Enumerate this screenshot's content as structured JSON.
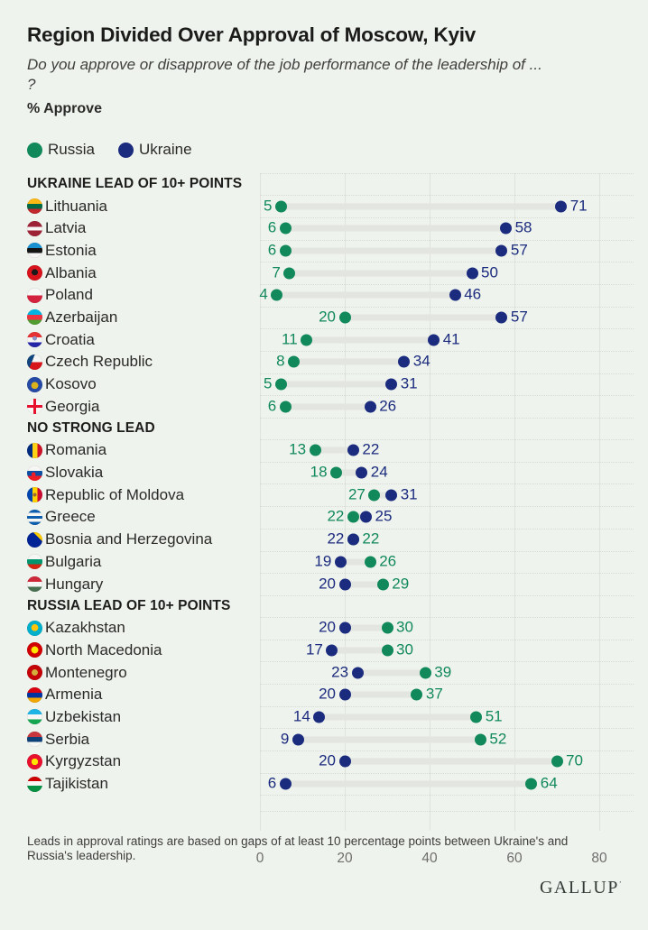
{
  "header": {
    "title": "Region Divided Over Approval of Moscow, Kyiv",
    "subtitle_line1": "Do you approve or disapprove of the job performance of the leadership of ...",
    "subtitle_line2": "?",
    "measure_label": "% Approve"
  },
  "legend": {
    "russia_label": "Russia",
    "ukraine_label": "Ukraine"
  },
  "colors": {
    "russia": "#11895a",
    "ukraine": "#1b2b7e",
    "bar": "#e3e6e0",
    "gridline": "#dfe3dc",
    "background": "#eff3ed"
  },
  "chart_data": {
    "type": "dumbbell",
    "title": "Region Divided Over Approval of Moscow, Kyiv",
    "measure": "% Approve",
    "series_names": [
      "Russia",
      "Ukraine"
    ],
    "axis": {
      "min": 0,
      "max": 80,
      "ticks": [
        0,
        20,
        40,
        60,
        80
      ],
      "grid": true
    },
    "sections": [
      {
        "label": "UKRAINE LEAD OF 10+ POINTS",
        "rows": [
          {
            "country": "Lithuania",
            "flag": "lithuania",
            "russia": 5,
            "ukraine": 71
          },
          {
            "country": "Latvia",
            "flag": "latvia",
            "russia": 6,
            "ukraine": 58
          },
          {
            "country": "Estonia",
            "flag": "estonia",
            "russia": 6,
            "ukraine": 57
          },
          {
            "country": "Albania",
            "flag": "albania",
            "russia": 7,
            "ukraine": 50
          },
          {
            "country": "Poland",
            "flag": "poland",
            "russia": 4,
            "ukraine": 46
          },
          {
            "country": "Azerbaijan",
            "flag": "azerbaijan",
            "russia": 20,
            "ukraine": 57
          },
          {
            "country": "Croatia",
            "flag": "croatia",
            "russia": 11,
            "ukraine": 41
          },
          {
            "country": "Czech Republic",
            "flag": "czech",
            "russia": 8,
            "ukraine": 34
          },
          {
            "country": "Kosovo",
            "flag": "kosovo",
            "russia": 5,
            "ukraine": 31
          },
          {
            "country": "Georgia",
            "flag": "georgia",
            "russia": 6,
            "ukraine": 26
          }
        ]
      },
      {
        "label": "NO STRONG LEAD",
        "rows": [
          {
            "country": "Romania",
            "flag": "romania",
            "russia": 13,
            "ukraine": 22
          },
          {
            "country": "Slovakia",
            "flag": "slovakia",
            "russia": 18,
            "ukraine": 24
          },
          {
            "country": "Republic of Moldova",
            "flag": "moldova",
            "russia": 27,
            "ukraine": 31
          },
          {
            "country": "Greece",
            "flag": "greece",
            "russia": 22,
            "ukraine": 25
          },
          {
            "country": "Bosnia and Herzegovina",
            "flag": "bosnia",
            "russia": 22,
            "ukraine": 22
          },
          {
            "country": "Bulgaria",
            "flag": "bulgaria",
            "russia": 26,
            "ukraine": 19
          },
          {
            "country": "Hungary",
            "flag": "hungary",
            "russia": 29,
            "ukraine": 20
          }
        ]
      },
      {
        "label": "RUSSIA LEAD OF 10+ POINTS",
        "rows": [
          {
            "country": "Kazakhstan",
            "flag": "kazakhstan",
            "russia": 30,
            "ukraine": 20
          },
          {
            "country": "North Macedonia",
            "flag": "macedonia",
            "russia": 30,
            "ukraine": 17
          },
          {
            "country": "Montenegro",
            "flag": "montenegro",
            "russia": 39,
            "ukraine": 23
          },
          {
            "country": "Armenia",
            "flag": "armenia",
            "russia": 37,
            "ukraine": 20
          },
          {
            "country": "Uzbekistan",
            "flag": "uzbekistan",
            "russia": 51,
            "ukraine": 14
          },
          {
            "country": "Serbia",
            "flag": "serbia",
            "russia": 52,
            "ukraine": 9
          },
          {
            "country": "Kyrgyzstan",
            "flag": "kyrgyzstan",
            "russia": 70,
            "ukraine": 20
          },
          {
            "country": "Tajikistan",
            "flag": "tajikistan",
            "russia": 64,
            "ukraine": 6
          }
        ]
      }
    ]
  },
  "footer": {
    "note": "Leads in approval ratings are based on gaps of at least 10 percentage points between Ukraine's and Russia's leadership.",
    "brand": "GALLUP"
  }
}
